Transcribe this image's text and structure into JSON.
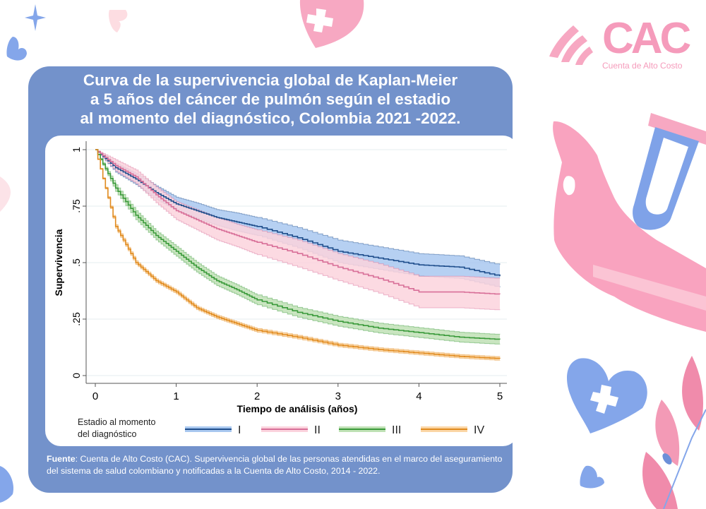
{
  "title": {
    "line1": "Curva de la supervivencia global de Kaplan-Meier",
    "line2": "a 5 años del cáncer de pulmón según el estadio",
    "line3": "al momento del diagnóstico, Colombia 2021 -2022."
  },
  "brand": {
    "logo_mark": "CAC",
    "logo_text": "Cuenta de Alto Costo",
    "accent_pink": "#f59bbb",
    "accent_blue": "#7392cb"
  },
  "source": {
    "label": "Fuente",
    "text": ": Cuenta de Alto Costo (CAC). Supervivencia global de las personas atendidas en el marco del aseguramiento del sistema de salud colombiano y notificadas a la Cuenta de Alto Costo, 2014 - 2022."
  },
  "chart_data": {
    "type": "line",
    "title": "Curva de la supervivencia global de Kaplan-Meier a 5 años del cáncer de pulmón según el estadio al momento del diagnóstico, Colombia 2021 -2022.",
    "xlabel": "Tiempo de análisis (años)",
    "ylabel": "Supervivencia",
    "xlim": [
      0,
      5
    ],
    "ylim": [
      0,
      1
    ],
    "xticks": [
      0,
      1,
      2,
      3,
      4,
      5
    ],
    "xtick_labels": [
      "0",
      "1",
      "2",
      "3",
      "4",
      "5"
    ],
    "yticks": [
      0,
      0.25,
      0.5,
      0.75,
      1
    ],
    "ytick_labels": [
      "0",
      ".25",
      ".5",
      ".75",
      "1"
    ],
    "grid": "horizontal",
    "legend_title": "Estadio al momento del diagnóstico",
    "legend_title_line1": "Estadio al momento",
    "legend_title_line2": "del diagnóstico",
    "legend_position": "bottom",
    "x": [
      0,
      0.25,
      0.5,
      0.75,
      1,
      1.25,
      1.5,
      1.75,
      2,
      2.5,
      3,
      3.5,
      4,
      4.5,
      5
    ],
    "series": [
      {
        "name": "I",
        "color": "#1f4e8c",
        "band_color": "#a9c8f0",
        "values": [
          1.0,
          0.92,
          0.87,
          0.81,
          0.76,
          0.73,
          0.7,
          0.68,
          0.66,
          0.61,
          0.55,
          0.52,
          0.49,
          0.48,
          0.44
        ],
        "ci_width": [
          0,
          0.02,
          0.025,
          0.03,
          0.03,
          0.035,
          0.035,
          0.04,
          0.04,
          0.045,
          0.05,
          0.05,
          0.05,
          0.05,
          0.05
        ]
      },
      {
        "name": "II",
        "color": "#d86f98",
        "band_color": "#fbd3dd",
        "values": [
          1.0,
          0.93,
          0.88,
          0.8,
          0.73,
          0.69,
          0.65,
          0.62,
          0.59,
          0.54,
          0.48,
          0.43,
          0.37,
          0.37,
          0.36
        ],
        "ci_width": [
          0,
          0.025,
          0.03,
          0.035,
          0.04,
          0.045,
          0.05,
          0.05,
          0.055,
          0.06,
          0.06,
          0.065,
          0.07,
          0.07,
          0.07
        ]
      },
      {
        "name": "III",
        "color": "#3a9a3a",
        "band_color": "#bfe1b5",
        "values": [
          1.0,
          0.83,
          0.71,
          0.62,
          0.55,
          0.48,
          0.42,
          0.38,
          0.335,
          0.28,
          0.24,
          0.21,
          0.19,
          0.17,
          0.16
        ],
        "ci_width": [
          0,
          0.015,
          0.02,
          0.02,
          0.022,
          0.022,
          0.022,
          0.022,
          0.022,
          0.022,
          0.022,
          0.022,
          0.022,
          0.022,
          0.022
        ]
      },
      {
        "name": "IV",
        "color": "#e08a1e",
        "band_color": "#fbd6a5",
        "values": [
          1.0,
          0.66,
          0.5,
          0.42,
          0.37,
          0.3,
          0.26,
          0.23,
          0.2,
          0.17,
          0.135,
          0.115,
          0.1,
          0.085,
          0.075
        ],
        "ci_width": [
          0,
          0.008,
          0.008,
          0.008,
          0.008,
          0.008,
          0.008,
          0.008,
          0.008,
          0.008,
          0.008,
          0.008,
          0.008,
          0.008,
          0.008
        ]
      }
    ]
  }
}
